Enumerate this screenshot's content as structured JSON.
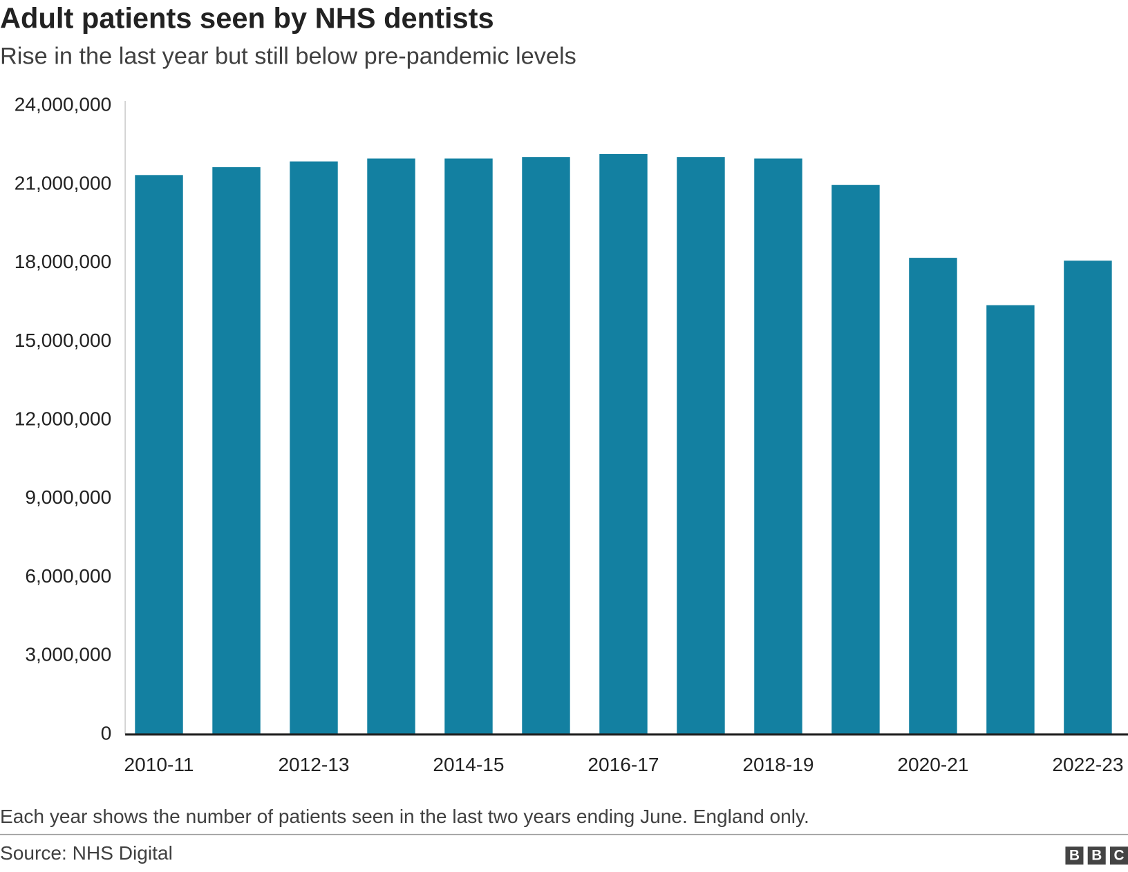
{
  "chart_data": {
    "type": "bar",
    "title": "Adult patients seen by NHS dentists",
    "subtitle": "Rise in the last year but still below pre-pandemic levels",
    "categories": [
      "2010-11",
      null,
      "2012-13",
      null,
      "2014-15",
      null,
      "2016-17",
      null,
      "2018-19",
      null,
      "2020-21",
      null,
      "2022-23"
    ],
    "values": [
      21360000,
      21660000,
      21880000,
      21990000,
      21990000,
      22050000,
      22160000,
      22050000,
      21990000,
      20980000,
      18200000,
      16390000,
      18090000
    ],
    "color": "#1380a1",
    "ylim": [
      0,
      24000000
    ],
    "yticks": [
      0,
      {
        "value": 3000000,
        "label": "3,000,000"
      },
      {
        "value": 6000000,
        "label": "6,000,000"
      },
      {
        "value": 9000000,
        "label": "9,000,000"
      },
      {
        "value": 12000000,
        "label": "12,000,000"
      },
      {
        "value": 15000000,
        "label": "15,000,000"
      },
      {
        "value": 18000000,
        "label": "18,000,000"
      },
      {
        "value": 21000000,
        "label": "21,000,000"
      },
      {
        "value": 24000000,
        "label": "24,000,000"
      }
    ],
    "grid": false,
    "note": "Each year shows the number of patients seen in the last two years ending June. England only.",
    "source": "Source: NHS Digital",
    "logo": [
      "B",
      "B",
      "C"
    ]
  }
}
